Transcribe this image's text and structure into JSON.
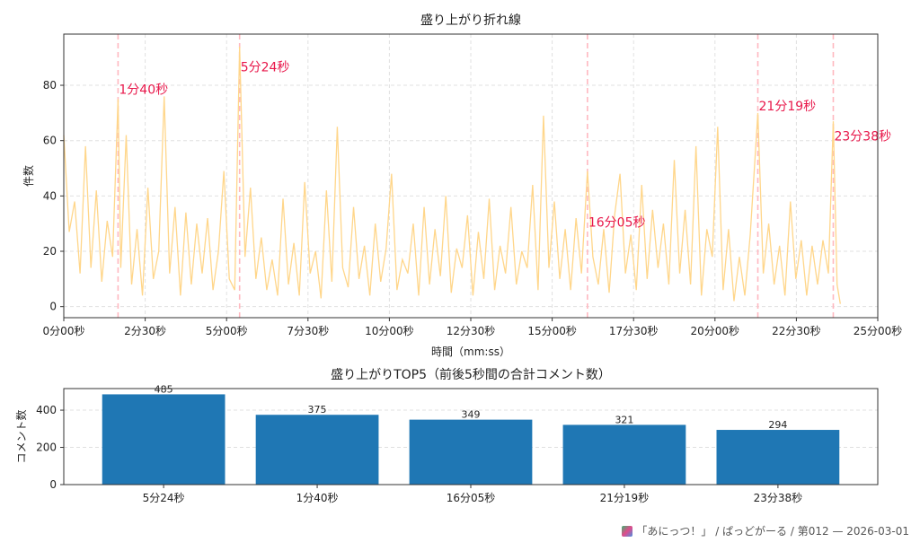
{
  "chart_data": [
    {
      "type": "line",
      "title": "盛り上がり折れ線",
      "xlabel": "時間（mm:ss）",
      "ylabel": "件数",
      "xlim": [
        0,
        1500
      ],
      "ylim": [
        -4,
        98.5
      ],
      "grid": true,
      "color": "#ffd68a",
      "xticks": [
        0,
        150,
        300,
        450,
        600,
        750,
        900,
        1050,
        1200,
        1350,
        1500
      ],
      "xtick_labels": [
        "0分00秒",
        "2分30秒",
        "5分00秒",
        "7分30秒",
        "10分00秒",
        "12分30秒",
        "15分00秒",
        "17分30秒",
        "20分00秒",
        "22分30秒",
        "25分00秒"
      ],
      "yticks": [
        0,
        20,
        40,
        60,
        80
      ],
      "points": [
        [
          0,
          62
        ],
        [
          10,
          27
        ],
        [
          20,
          38
        ],
        [
          30,
          12
        ],
        [
          40,
          58
        ],
        [
          50,
          14
        ],
        [
          60,
          42
        ],
        [
          70,
          9
        ],
        [
          80,
          31
        ],
        [
          90,
          18
        ],
        [
          100,
          75
        ],
        [
          105,
          14
        ],
        [
          115,
          62
        ],
        [
          125,
          8
        ],
        [
          135,
          28
        ],
        [
          145,
          4
        ],
        [
          155,
          43
        ],
        [
          165,
          10
        ],
        [
          175,
          20
        ],
        [
          185,
          76
        ],
        [
          195,
          12
        ],
        [
          205,
          36
        ],
        [
          215,
          4
        ],
        [
          225,
          34
        ],
        [
          235,
          8
        ],
        [
          245,
          30
        ],
        [
          255,
          12
        ],
        [
          265,
          32
        ],
        [
          275,
          6
        ],
        [
          285,
          20
        ],
        [
          295,
          49
        ],
        [
          305,
          10
        ],
        [
          315,
          6
        ],
        [
          324,
          94
        ],
        [
          334,
          18
        ],
        [
          344,
          43
        ],
        [
          354,
          10
        ],
        [
          364,
          25
        ],
        [
          374,
          6
        ],
        [
          384,
          17
        ],
        [
          394,
          4
        ],
        [
          404,
          39
        ],
        [
          414,
          8
        ],
        [
          424,
          23
        ],
        [
          434,
          4
        ],
        [
          444,
          45
        ],
        [
          454,
          12
        ],
        [
          464,
          20
        ],
        [
          474,
          3
        ],
        [
          484,
          42
        ],
        [
          494,
          9
        ],
        [
          504,
          65
        ],
        [
          514,
          14
        ],
        [
          524,
          7
        ],
        [
          534,
          36
        ],
        [
          544,
          10
        ],
        [
          554,
          22
        ],
        [
          564,
          4
        ],
        [
          574,
          30
        ],
        [
          584,
          9
        ],
        [
          594,
          21
        ],
        [
          604,
          48
        ],
        [
          614,
          6
        ],
        [
          624,
          17
        ],
        [
          634,
          12
        ],
        [
          644,
          30
        ],
        [
          654,
          4
        ],
        [
          664,
          36
        ],
        [
          674,
          8
        ],
        [
          684,
          28
        ],
        [
          694,
          11
        ],
        [
          704,
          40
        ],
        [
          714,
          5
        ],
        [
          724,
          21
        ],
        [
          734,
          14
        ],
        [
          744,
          33
        ],
        [
          754,
          4
        ],
        [
          764,
          27
        ],
        [
          774,
          10
        ],
        [
          784,
          39
        ],
        [
          794,
          6
        ],
        [
          804,
          22
        ],
        [
          814,
          12
        ],
        [
          824,
          36
        ],
        [
          834,
          8
        ],
        [
          844,
          20
        ],
        [
          854,
          14
        ],
        [
          864,
          44
        ],
        [
          874,
          6
        ],
        [
          884,
          69
        ],
        [
          894,
          14
        ],
        [
          904,
          38
        ],
        [
          914,
          10
        ],
        [
          924,
          28
        ],
        [
          934,
          6
        ],
        [
          944,
          32
        ],
        [
          954,
          12
        ],
        [
          965,
          49
        ],
        [
          975,
          18
        ],
        [
          985,
          8
        ],
        [
          995,
          28
        ],
        [
          1005,
          5
        ],
        [
          1015,
          33
        ],
        [
          1025,
          48
        ],
        [
          1035,
          12
        ],
        [
          1045,
          26
        ],
        [
          1055,
          6
        ],
        [
          1065,
          44
        ],
        [
          1075,
          10
        ],
        [
          1085,
          35
        ],
        [
          1095,
          14
        ],
        [
          1105,
          30
        ],
        [
          1115,
          8
        ],
        [
          1125,
          53
        ],
        [
          1135,
          12
        ],
        [
          1145,
          35
        ],
        [
          1155,
          8
        ],
        [
          1165,
          58
        ],
        [
          1175,
          4
        ],
        [
          1185,
          28
        ],
        [
          1195,
          18
        ],
        [
          1205,
          65
        ],
        [
          1215,
          6
        ],
        [
          1225,
          28
        ],
        [
          1235,
          2
        ],
        [
          1245,
          18
        ],
        [
          1255,
          4
        ],
        [
          1265,
          26
        ],
        [
          1279,
          70
        ],
        [
          1289,
          12
        ],
        [
          1299,
          30
        ],
        [
          1309,
          8
        ],
        [
          1319,
          22
        ],
        [
          1329,
          4
        ],
        [
          1339,
          38
        ],
        [
          1349,
          10
        ],
        [
          1359,
          24
        ],
        [
          1369,
          4
        ],
        [
          1379,
          22
        ],
        [
          1389,
          8
        ],
        [
          1399,
          24
        ],
        [
          1409,
          12
        ],
        [
          1418,
          67
        ],
        [
          1425,
          8
        ],
        [
          1431,
          1
        ]
      ],
      "annotations": [
        {
          "t": 100,
          "label": "1分40秒",
          "y": 77
        },
        {
          "t": 324,
          "label": "5分24秒",
          "y": 85
        },
        {
          "t": 965,
          "label": "16分05秒",
          "y": 29
        },
        {
          "t": 1279,
          "label": "21分19秒",
          "y": 71
        },
        {
          "t": 1418,
          "label": "23分38秒",
          "y": 60
        }
      ],
      "annotation_color": "#e8174a",
      "vline_color": "#ffb8c0"
    },
    {
      "type": "bar",
      "title": "盛り上がりTOP5（前後5秒間の合計コメント数）",
      "xlabel": "",
      "ylabel": "コメント数",
      "categories": [
        "5分24秒",
        "1分40秒",
        "16分05秒",
        "21分19秒",
        "23分38秒"
      ],
      "values": [
        485,
        375,
        349,
        321,
        294
      ],
      "ylim": [
        0,
        516
      ],
      "yticks": [
        0,
        200,
        400
      ],
      "grid": true,
      "color": "#1f77b4"
    }
  ],
  "footer": {
    "text": "「あにっつ！」 / ぱっどがーる / 第012 — 2026-03-01"
  }
}
